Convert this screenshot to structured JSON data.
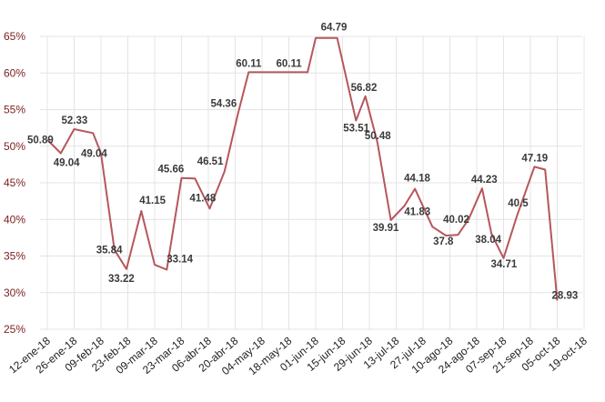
{
  "chart_data": {
    "type": "line",
    "title": "",
    "xlabel": "",
    "ylabel": "",
    "ylim": [
      25,
      65
    ],
    "y_ticks": [
      "25%",
      "30%",
      "35%",
      "40%",
      "45%",
      "50%",
      "55%",
      "60%",
      "65%"
    ],
    "x_ticks": [
      "12-ene-18",
      "26-ene-18",
      "09-feb-18",
      "23-feb-18",
      "09-mar-18",
      "23-mar-18",
      "06-abr-18",
      "20-abr-18",
      "04-may-18",
      "18-may-18",
      "01-jun-18",
      "15-jun-18",
      "29-jun-18",
      "13-jul-18",
      "27-jul-18",
      "10-ago-18",
      "24-ago-18",
      "07-sep-18",
      "21-sep-18",
      "05-oct-18",
      "19-oct-18"
    ],
    "grid": true,
    "line_color": "#b5575c",
    "series": [
      {
        "points": [
          {
            "x": 0.0,
            "y": 50.89,
            "label": "50.89"
          },
          {
            "x": 0.5,
            "y": 49.04,
            "label": "49.04"
          },
          {
            "x": 1.0,
            "y": 52.33,
            "label": "52.33"
          },
          {
            "x": 1.7,
            "y": 51.8
          },
          {
            "x": 2.0,
            "y": 49.04,
            "label": "49.04"
          },
          {
            "x": 2.5,
            "y": 35.84,
            "label": "35.84"
          },
          {
            "x": 2.95,
            "y": 33.22,
            "label": "33.22"
          },
          {
            "x": 3.5,
            "y": 41.15,
            "label": "41.15"
          },
          {
            "x": 4.0,
            "y": 33.81
          },
          {
            "x": 4.45,
            "y": 33.14,
            "label": "33.14"
          },
          {
            "x": 5.0,
            "y": 45.66,
            "label": "45.66"
          },
          {
            "x": 5.5,
            "y": 45.6
          },
          {
            "x": 6.05,
            "y": 41.48,
            "label": "41.48"
          },
          {
            "x": 6.6,
            "y": 46.51,
            "label": "46.51"
          },
          {
            "x": 7.1,
            "y": 54.36,
            "label": "54.36"
          },
          {
            "x": 7.5,
            "y": 60.11,
            "label": "60.11"
          },
          {
            "x": 9.0,
            "y": 60.11,
            "label": "60.11"
          },
          {
            "x": 9.7,
            "y": 60.11
          },
          {
            "x": 10.0,
            "y": 64.79
          },
          {
            "x": 10.8,
            "y": 64.79,
            "label": "64.79"
          },
          {
            "x": 11.5,
            "y": 53.51,
            "label": "53.51"
          },
          {
            "x": 11.85,
            "y": 56.82,
            "label": "56.82"
          },
          {
            "x": 12.3,
            "y": 50.48,
            "label": "50.48"
          },
          {
            "x": 12.8,
            "y": 39.91,
            "label": "39.91"
          },
          {
            "x": 13.3,
            "y": 41.83,
            "label": "41.83"
          },
          {
            "x": 13.7,
            "y": 44.18,
            "label": "44.18"
          },
          {
            "x": 14.35,
            "y": 39.0
          },
          {
            "x": 14.85,
            "y": 37.8,
            "label": "37.8"
          },
          {
            "x": 15.3,
            "y": 37.9
          },
          {
            "x": 15.7,
            "y": 40.02,
            "label": "40.02"
          },
          {
            "x": 16.2,
            "y": 44.23,
            "label": "44.23"
          },
          {
            "x": 16.55,
            "y": 38.04,
            "label": "38.04"
          },
          {
            "x": 17.0,
            "y": 34.71,
            "label": "34.71"
          },
          {
            "x": 17.5,
            "y": 40.5,
            "label": "40.5"
          },
          {
            "x": 18.15,
            "y": 47.19,
            "label": "47.19"
          },
          {
            "x": 18.55,
            "y": 46.8
          },
          {
            "x": 19.0,
            "y": 28.93,
            "label": "28.93"
          }
        ]
      }
    ]
  }
}
